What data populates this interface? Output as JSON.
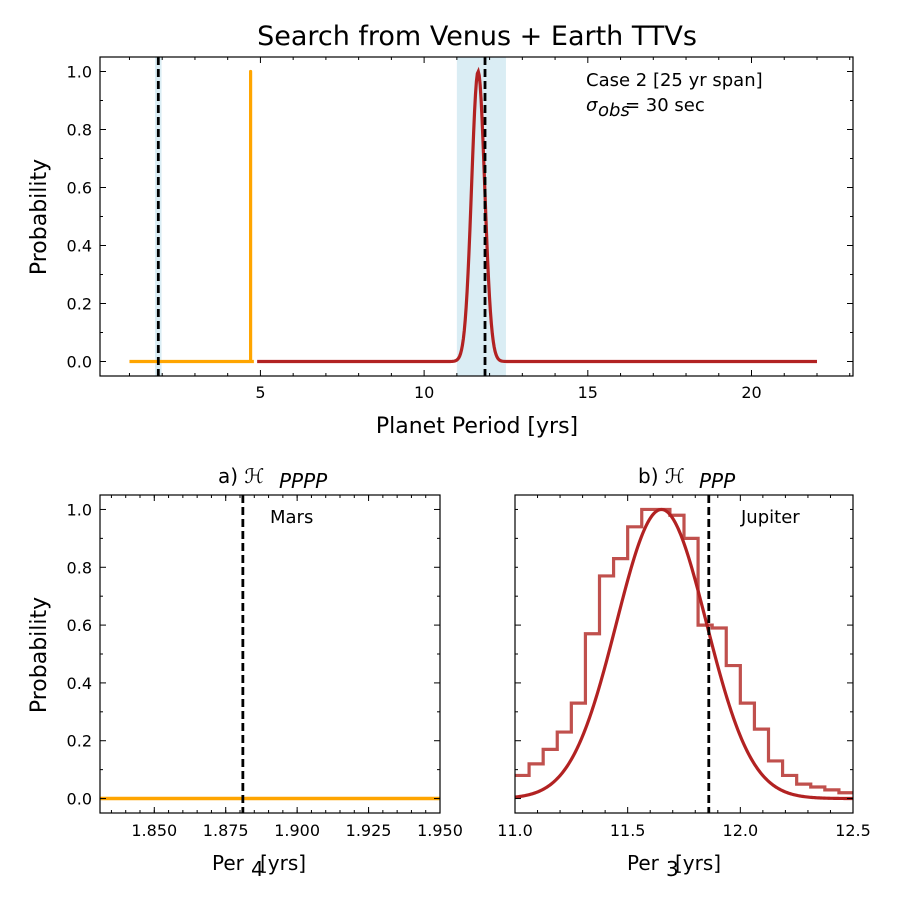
{
  "chart_data": [
    {
      "type": "line",
      "title": "Search from Venus + Earth TTVs",
      "xlabel": "Planet Period [yrs]",
      "ylabel": "Probability",
      "xlim": [
        0.1,
        23.1
      ],
      "ylim": [
        -0.05,
        1.05
      ],
      "xticks": [
        5,
        10,
        15,
        20
      ],
      "yticks": [
        0.0,
        0.2,
        0.4,
        0.6,
        0.8,
        1.0
      ],
      "annotations": [
        "Case 2 [25 yr span]",
        "σ_obs = 30 sec"
      ],
      "shaded_regions": [
        {
          "x0": 1.78,
          "x1": 1.98,
          "color": "#add8e6"
        },
        {
          "x0": 11.0,
          "x1": 12.5,
          "color": "#add8e6"
        }
      ],
      "vlines_dashed": [
        1.881,
        11.86
      ],
      "series": [
        {
          "color": "#ffa500",
          "x": [
            1.0,
            4.7,
            4.7,
            4.7,
            4.8
          ],
          "y": [
            0.0,
            0.0,
            1.0,
            0.0,
            0.0
          ]
        },
        {
          "color": "#b22222",
          "gaussian": {
            "mu": 11.65,
            "sigma": 0.2
          },
          "x_range": [
            4.9,
            22.0
          ]
        }
      ]
    },
    {
      "type": "line",
      "title": "a)  ℋ",
      "title_sub": "PPPP",
      "xlabel": "Per",
      "xlabel_sub": "4",
      "xlabel_tail": " [yrs]",
      "ylabel": "Probability",
      "xlim": [
        1.831,
        1.95
      ],
      "ylim": [
        -0.05,
        1.05
      ],
      "xticks": [
        "1.850",
        "1.875",
        "1.900",
        "1.925",
        "1.950"
      ],
      "yticks": [
        "0.0",
        "0.2",
        "0.4",
        "0.6",
        "0.8",
        "1.0"
      ],
      "annotations": [
        "Mars"
      ],
      "vlines_dashed": [
        1.881
      ],
      "series": [
        {
          "color": "#ffa500",
          "x": [
            1.831,
            1.95
          ],
          "y": [
            0.0,
            0.0
          ]
        }
      ]
    },
    {
      "type": "line",
      "title": "b)  ℋ",
      "title_sub": "PPP",
      "xlabel": "Per",
      "xlabel_sub": "3",
      "xlabel_tail": " [yrs]",
      "xlim": [
        11.0,
        12.5
      ],
      "ylim": [
        -0.05,
        1.05
      ],
      "xticks": [
        "11.0",
        "11.5",
        "12.0",
        "12.5"
      ],
      "annotations": [
        "Jupiter"
      ],
      "vlines_dashed": [
        11.86
      ],
      "series": [
        {
          "color": "#c0504d",
          "style": "step",
          "bin_width": 0.0625,
          "bin_starts": [
            11.0,
            11.0625,
            11.125,
            11.1875,
            11.25,
            11.3125,
            11.375,
            11.4375,
            11.5,
            11.5625,
            11.625,
            11.6875,
            11.75,
            11.8125,
            11.875,
            11.9375,
            12.0,
            12.0625,
            12.125,
            12.1875,
            12.25,
            12.3125,
            12.375,
            12.4375
          ],
          "values": [
            0.08,
            0.12,
            0.17,
            0.23,
            0.33,
            0.57,
            0.77,
            0.83,
            0.94,
            1.0,
            1.0,
            0.98,
            0.9,
            0.6,
            0.59,
            0.46,
            0.33,
            0.24,
            0.13,
            0.08,
            0.05,
            0.04,
            0.03,
            0.02
          ]
        },
        {
          "color": "#b22222",
          "gaussian": {
            "mu": 11.65,
            "sigma": 0.2
          },
          "x_range": [
            11.0,
            12.5
          ]
        }
      ]
    }
  ]
}
